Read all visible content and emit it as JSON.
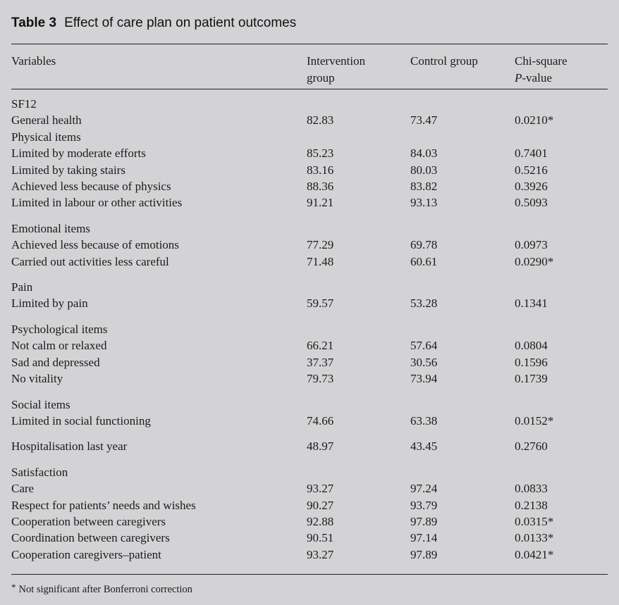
{
  "caption": {
    "label": "Table 3",
    "title": "Effect of care plan on patient outcomes"
  },
  "table": {
    "columns": [
      {
        "id": "variables",
        "label": "Variables"
      },
      {
        "id": "intervention",
        "label": "Intervention group"
      },
      {
        "id": "control",
        "label": "Control group"
      },
      {
        "id": "chi_square_p",
        "label": "Chi-square P-value",
        "line1": "Chi-square",
        "line2": "P-value"
      }
    ],
    "rows": [
      {
        "label": "SF12",
        "intervention": "",
        "control": "",
        "p": "",
        "section": true,
        "gap": false
      },
      {
        "label": "General health",
        "intervention": "82.83",
        "control": "73.47",
        "p": "0.0210*",
        "section": false,
        "gap": false
      },
      {
        "label": "Physical items",
        "intervention": "",
        "control": "",
        "p": "",
        "section": true,
        "gap": false
      },
      {
        "label": "Limited by moderate efforts",
        "intervention": "85.23",
        "control": "84.03",
        "p": "0.7401",
        "section": false,
        "gap": false
      },
      {
        "label": "Limited by taking stairs",
        "intervention": "83.16",
        "control": "80.03",
        "p": "0.5216",
        "section": false,
        "gap": false
      },
      {
        "label": "Achieved less because of physics",
        "intervention": "88.36",
        "control": "83.82",
        "p": "0.3926",
        "section": false,
        "gap": false
      },
      {
        "label": "Limited in labour or other activities",
        "intervention": "91.21",
        "control": "93.13",
        "p": "0.5093",
        "section": false,
        "gap": false
      },
      {
        "label": "Emotional items",
        "intervention": "",
        "control": "",
        "p": "",
        "section": true,
        "gap": true
      },
      {
        "label": "Achieved less because of emotions",
        "intervention": "77.29",
        "control": "69.78",
        "p": "0.0973",
        "section": false,
        "gap": false
      },
      {
        "label": "Carried out activities less careful",
        "intervention": "71.48",
        "control": "60.61",
        "p": "0.0290*",
        "section": false,
        "gap": false
      },
      {
        "label": "Pain",
        "intervention": "",
        "control": "",
        "p": "",
        "section": true,
        "gap": true
      },
      {
        "label": "Limited by pain",
        "intervention": "59.57",
        "control": "53.28",
        "p": "0.1341",
        "section": false,
        "gap": false
      },
      {
        "label": "Psychological items",
        "intervention": "",
        "control": "",
        "p": "",
        "section": true,
        "gap": true
      },
      {
        "label": "Not calm or relaxed",
        "intervention": "66.21",
        "control": "57.64",
        "p": "0.0804",
        "section": false,
        "gap": false
      },
      {
        "label": "Sad and depressed",
        "intervention": "37.37",
        "control": "30.56",
        "p": "0.1596",
        "section": false,
        "gap": false
      },
      {
        "label": "No vitality",
        "intervention": "79.73",
        "control": "73.94",
        "p": "0.1739",
        "section": false,
        "gap": false
      },
      {
        "label": "Social items",
        "intervention": "",
        "control": "",
        "p": "",
        "section": true,
        "gap": true
      },
      {
        "label": "Limited in social functioning",
        "intervention": "74.66",
        "control": "63.38",
        "p": "0.0152*",
        "section": false,
        "gap": false
      },
      {
        "label": "Hospitalisation last year",
        "intervention": "48.97",
        "control": "43.45",
        "p": "0.2760",
        "section": false,
        "gap": true
      },
      {
        "label": "Satisfaction",
        "intervention": "",
        "control": "",
        "p": "",
        "section": true,
        "gap": true
      },
      {
        "label": "Care",
        "intervention": "93.27",
        "control": "97.24",
        "p": "0.0833",
        "section": false,
        "gap": false
      },
      {
        "label": "Respect for patients’ needs and wishes",
        "intervention": "90.27",
        "control": "93.79",
        "p": "0.2138",
        "section": false,
        "gap": false
      },
      {
        "label": "Cooperation between caregivers",
        "intervention": "92.88",
        "control": "97.89",
        "p": "0.0315*",
        "section": false,
        "gap": false
      },
      {
        "label": "Coordination between caregivers",
        "intervention": "90.51",
        "control": "97.14",
        "p": "0.0133*",
        "section": false,
        "gap": false
      },
      {
        "label": "Cooperation caregivers–patient",
        "intervention": "93.27",
        "control": "97.89",
        "p": "0.0421*",
        "section": false,
        "gap": false
      }
    ]
  },
  "footnote": {
    "marker": "*",
    "text": "Not significant after Bonferroni correction"
  },
  "colors": {
    "background": "#d3d3d5",
    "text": "#1b1b1b",
    "rule": "#222222"
  }
}
